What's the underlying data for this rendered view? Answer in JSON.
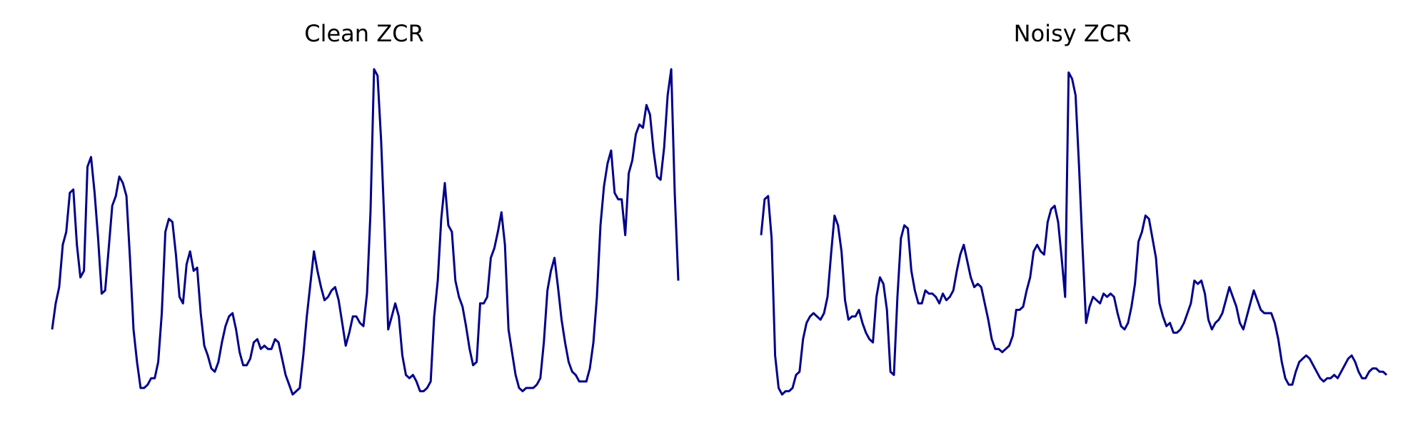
{
  "line_color": "#00008b",
  "chart_data": [
    {
      "type": "line",
      "title": "Clean ZCR",
      "xlabel": "",
      "ylabel": "",
      "axes_visible": false,
      "grid": false,
      "ylim": [
        0,
        1
      ],
      "series": [
        {
          "values": [
            0.2,
            0.28,
            0.33,
            0.46,
            0.5,
            0.62,
            0.63,
            0.46,
            0.36,
            0.38,
            0.7,
            0.73,
            0.62,
            0.48,
            0.31,
            0.32,
            0.45,
            0.58,
            0.61,
            0.67,
            0.65,
            0.61,
            0.42,
            0.2,
            0.1,
            0.02,
            0.02,
            0.03,
            0.05,
            0.05,
            0.1,
            0.25,
            0.5,
            0.54,
            0.53,
            0.43,
            0.3,
            0.28,
            0.4,
            0.44,
            0.38,
            0.39,
            0.25,
            0.15,
            0.12,
            0.08,
            0.07,
            0.1,
            0.16,
            0.21,
            0.24,
            0.25,
            0.2,
            0.13,
            0.09,
            0.09,
            0.11,
            0.16,
            0.17,
            0.14,
            0.15,
            0.14,
            0.14,
            0.17,
            0.16,
            0.11,
            0.06,
            0.03,
            0.0,
            0.01,
            0.02,
            0.12,
            0.24,
            0.34,
            0.44,
            0.38,
            0.33,
            0.29,
            0.3,
            0.32,
            0.33,
            0.29,
            0.22,
            0.15,
            0.19,
            0.24,
            0.24,
            0.22,
            0.21,
            0.31,
            0.56,
            1.0,
            0.98,
            0.78,
            0.5,
            0.2,
            0.24,
            0.28,
            0.24,
            0.12,
            0.06,
            0.05,
            0.06,
            0.04,
            0.01,
            0.01,
            0.02,
            0.04,
            0.24,
            0.35,
            0.54,
            0.65,
            0.52,
            0.5,
            0.35,
            0.3,
            0.27,
            0.21,
            0.14,
            0.09,
            0.1,
            0.28,
            0.28,
            0.3,
            0.42,
            0.45,
            0.5,
            0.56,
            0.46,
            0.2,
            0.13,
            0.06,
            0.02,
            0.01,
            0.02,
            0.02,
            0.02,
            0.03,
            0.05,
            0.16,
            0.32,
            0.38,
            0.42,
            0.33,
            0.23,
            0.16,
            0.1,
            0.07,
            0.06,
            0.04,
            0.04,
            0.04,
            0.08,
            0.16,
            0.3,
            0.52,
            0.64,
            0.71,
            0.75,
            0.62,
            0.6,
            0.6,
            0.49,
            0.68,
            0.72,
            0.8,
            0.83,
            0.82,
            0.89,
            0.86,
            0.75,
            0.67,
            0.66,
            0.76,
            0.92,
            1.0,
            0.62,
            0.35
          ]
        }
      ]
    },
    {
      "type": "line",
      "title": "Noisy ZCR",
      "xlabel": "",
      "ylabel": "",
      "axes_visible": false,
      "grid": false,
      "ylim": [
        0,
        1
      ],
      "series": [
        {
          "values": [
            0.49,
            0.6,
            0.61,
            0.48,
            0.12,
            0.02,
            0.0,
            0.01,
            0.01,
            0.02,
            0.06,
            0.07,
            0.17,
            0.22,
            0.24,
            0.25,
            0.24,
            0.23,
            0.25,
            0.3,
            0.43,
            0.55,
            0.52,
            0.44,
            0.29,
            0.23,
            0.24,
            0.24,
            0.26,
            0.22,
            0.19,
            0.17,
            0.16,
            0.3,
            0.36,
            0.34,
            0.26,
            0.07,
            0.06,
            0.3,
            0.48,
            0.52,
            0.51,
            0.38,
            0.32,
            0.28,
            0.28,
            0.32,
            0.31,
            0.31,
            0.3,
            0.28,
            0.31,
            0.29,
            0.3,
            0.32,
            0.38,
            0.43,
            0.46,
            0.41,
            0.36,
            0.33,
            0.34,
            0.33,
            0.28,
            0.23,
            0.17,
            0.14,
            0.14,
            0.13,
            0.14,
            0.15,
            0.18,
            0.26,
            0.26,
            0.27,
            0.32,
            0.36,
            0.44,
            0.46,
            0.44,
            0.43,
            0.53,
            0.57,
            0.58,
            0.53,
            0.42,
            0.3,
            0.99,
            0.97,
            0.92,
            0.7,
            0.45,
            0.22,
            0.27,
            0.3,
            0.29,
            0.28,
            0.31,
            0.3,
            0.31,
            0.3,
            0.25,
            0.21,
            0.2,
            0.22,
            0.27,
            0.34,
            0.47,
            0.5,
            0.55,
            0.54,
            0.48,
            0.42,
            0.28,
            0.24,
            0.21,
            0.22,
            0.19,
            0.19,
            0.2,
            0.22,
            0.25,
            0.28,
            0.35,
            0.34,
            0.35,
            0.31,
            0.23,
            0.2,
            0.22,
            0.23,
            0.25,
            0.29,
            0.33,
            0.3,
            0.27,
            0.22,
            0.2,
            0.24,
            0.28,
            0.32,
            0.29,
            0.26,
            0.25,
            0.25,
            0.25,
            0.22,
            0.17,
            0.1,
            0.05,
            0.03,
            0.03,
            0.07,
            0.1,
            0.11,
            0.12,
            0.11,
            0.09,
            0.07,
            0.05,
            0.04,
            0.05,
            0.05,
            0.06,
            0.05,
            0.07,
            0.09,
            0.11,
            0.12,
            0.1,
            0.07,
            0.05,
            0.05,
            0.07,
            0.08,
            0.08,
            0.07,
            0.07,
            0.06
          ]
        }
      ]
    }
  ]
}
